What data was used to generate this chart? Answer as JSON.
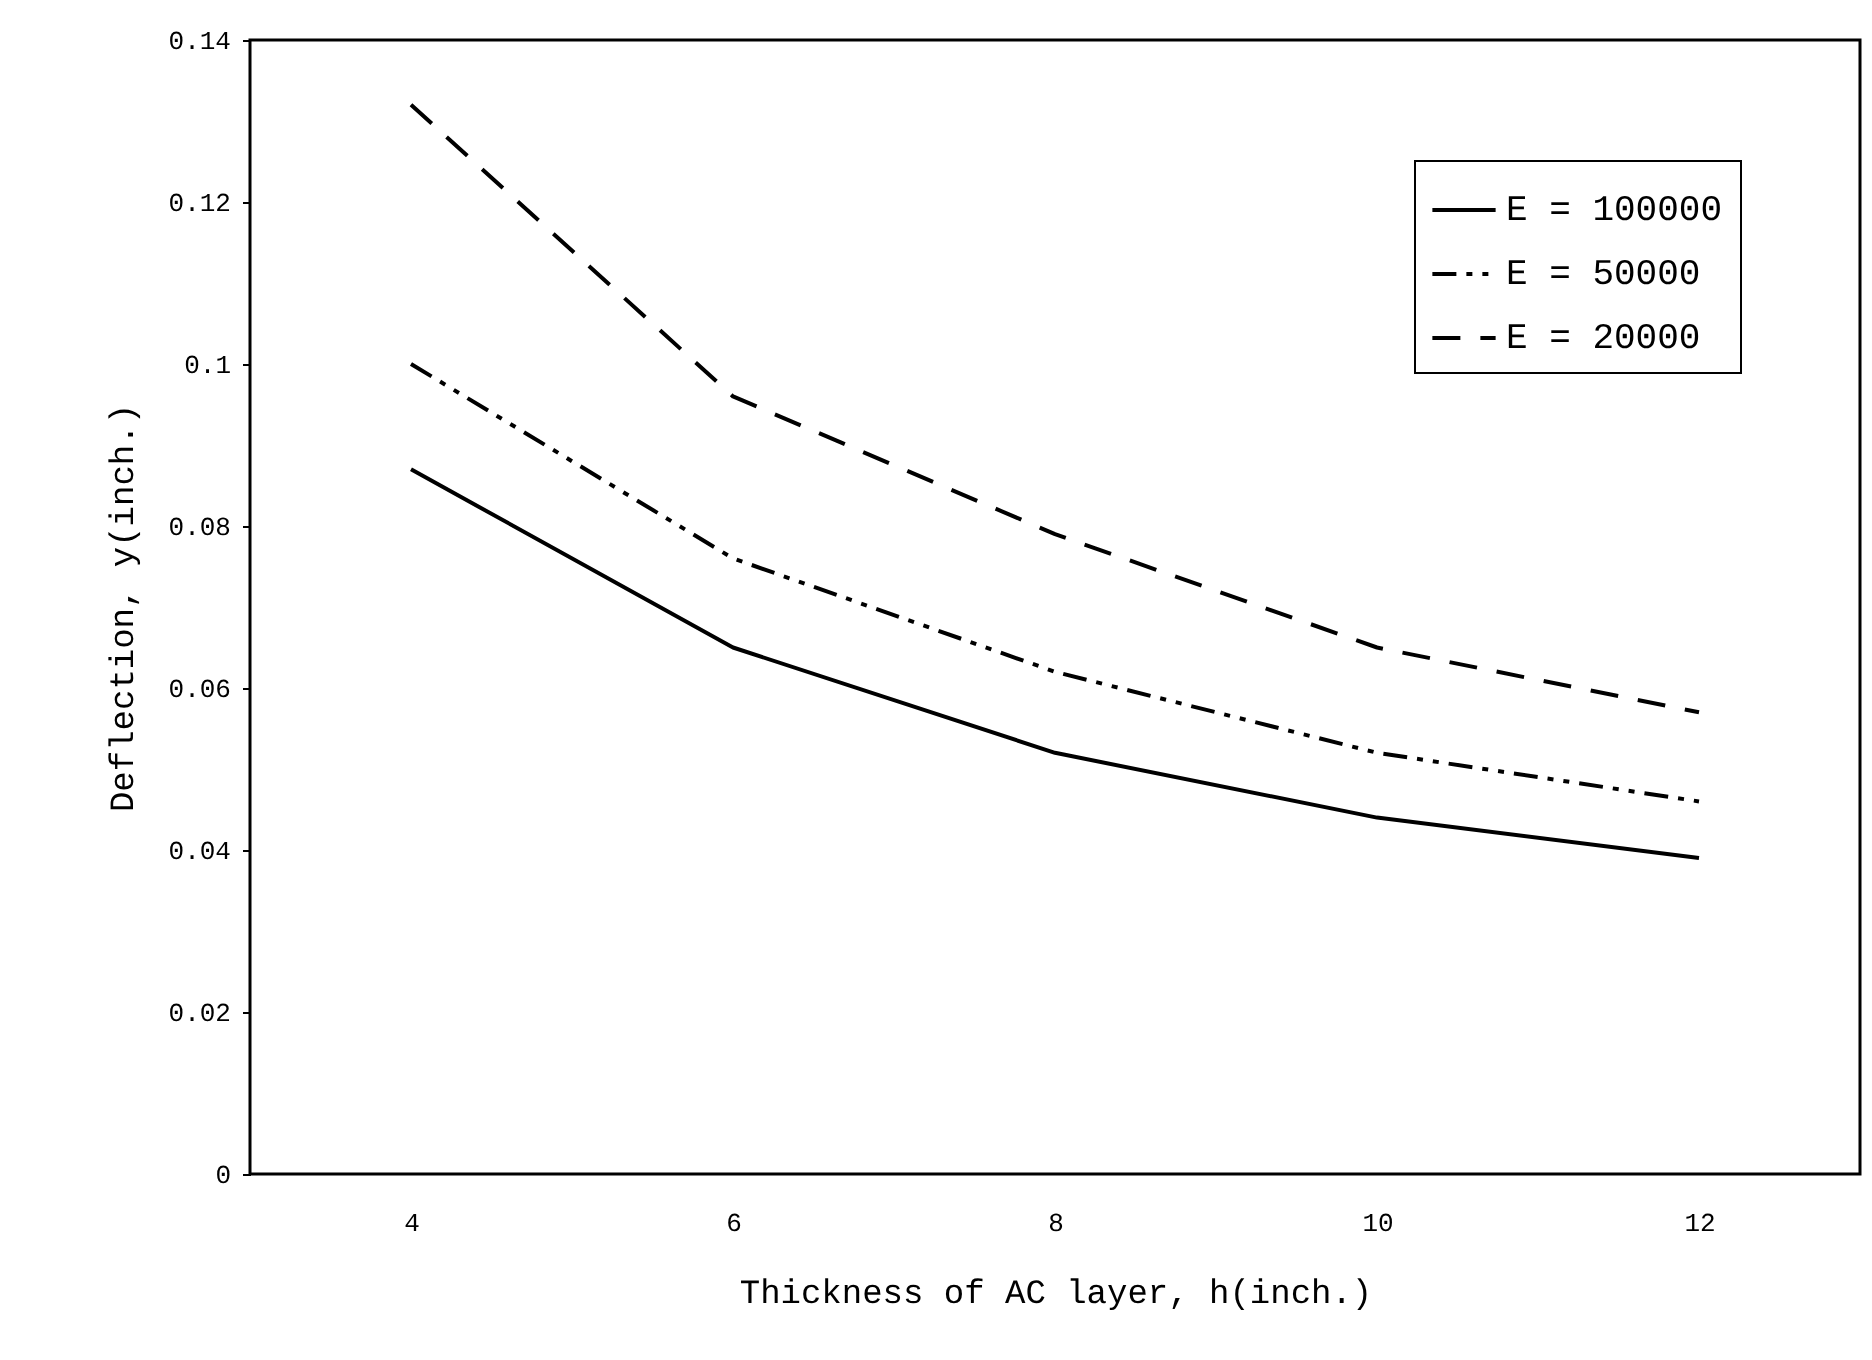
{
  "chart_data": {
    "type": "line",
    "xlabel": "Thickness of AC layer, h(inch.)",
    "ylabel": "Deflection, y(inch.)",
    "x": [
      4,
      6,
      8,
      10,
      12
    ],
    "series": [
      {
        "name": "E = 100000",
        "color": "#000000",
        "line_style": "solid",
        "values": [
          0.087,
          0.065,
          0.052,
          0.044,
          0.039
        ]
      },
      {
        "name": "E = 50000",
        "color": "#000000",
        "line_style": "dashdot",
        "values": [
          0.1,
          0.076,
          0.062,
          0.052,
          0.046
        ]
      },
      {
        "name": "E = 20000",
        "color": "#000000",
        "line_style": "dashed",
        "values": [
          0.132,
          0.096,
          0.079,
          0.065,
          0.057
        ]
      }
    ],
    "xlim": [
      3,
      13
    ],
    "xticks": [
      4,
      6,
      8,
      10,
      12
    ],
    "ylim": [
      0,
      0.14
    ],
    "yticks": [
      0,
      0.02,
      0.04,
      0.06,
      0.08,
      0.1,
      0.12,
      0.14
    ],
    "grid": false,
    "legend": "top right",
    "marker": "none"
  }
}
